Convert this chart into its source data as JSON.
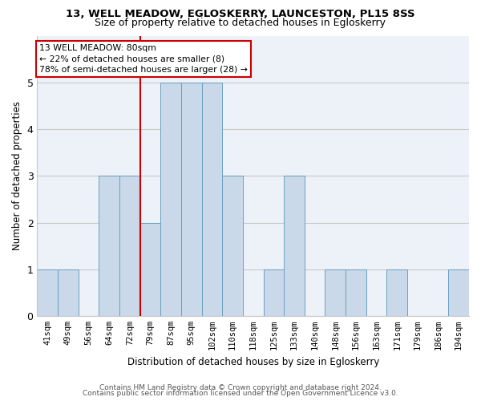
{
  "title": "13, WELL MEADOW, EGLOSKERRY, LAUNCESTON, PL15 8SS",
  "subtitle": "Size of property relative to detached houses in Egloskerry",
  "xlabel": "Distribution of detached houses by size in Egloskerry",
  "ylabel": "Number of detached properties",
  "categories": [
    "41sqm",
    "49sqm",
    "56sqm",
    "64sqm",
    "72sqm",
    "79sqm",
    "87sqm",
    "95sqm",
    "102sqm",
    "110sqm",
    "118sqm",
    "125sqm",
    "133sqm",
    "140sqm",
    "148sqm",
    "156sqm",
    "163sqm",
    "171sqm",
    "179sqm",
    "186sqm",
    "194sqm"
  ],
  "values": [
    1,
    1,
    0,
    3,
    3,
    2,
    5,
    5,
    5,
    3,
    0,
    1,
    3,
    0,
    1,
    1,
    0,
    1,
    0,
    0,
    1
  ],
  "bar_color": "#c9d9ea",
  "bar_edge_color": "#6b9fc0",
  "vline_index": 5,
  "annotation_title": "13 WELL MEADOW: 80sqm",
  "annotation_line1": "← 22% of detached houses are smaller (8)",
  "annotation_line2": "78% of semi-detached houses are larger (28) →",
  "annotation_box_color": "#cc0000",
  "ylim": [
    0,
    6
  ],
  "yticks": [
    0,
    1,
    2,
    3,
    4,
    5
  ],
  "footer1": "Contains HM Land Registry data © Crown copyright and database right 2024.",
  "footer2": "Contains public sector information licensed under the Open Government Licence v3.0.",
  "bg_color": "#ffffff",
  "plot_bg_color": "#edf2f8",
  "grid_color": "#c8c8c8"
}
